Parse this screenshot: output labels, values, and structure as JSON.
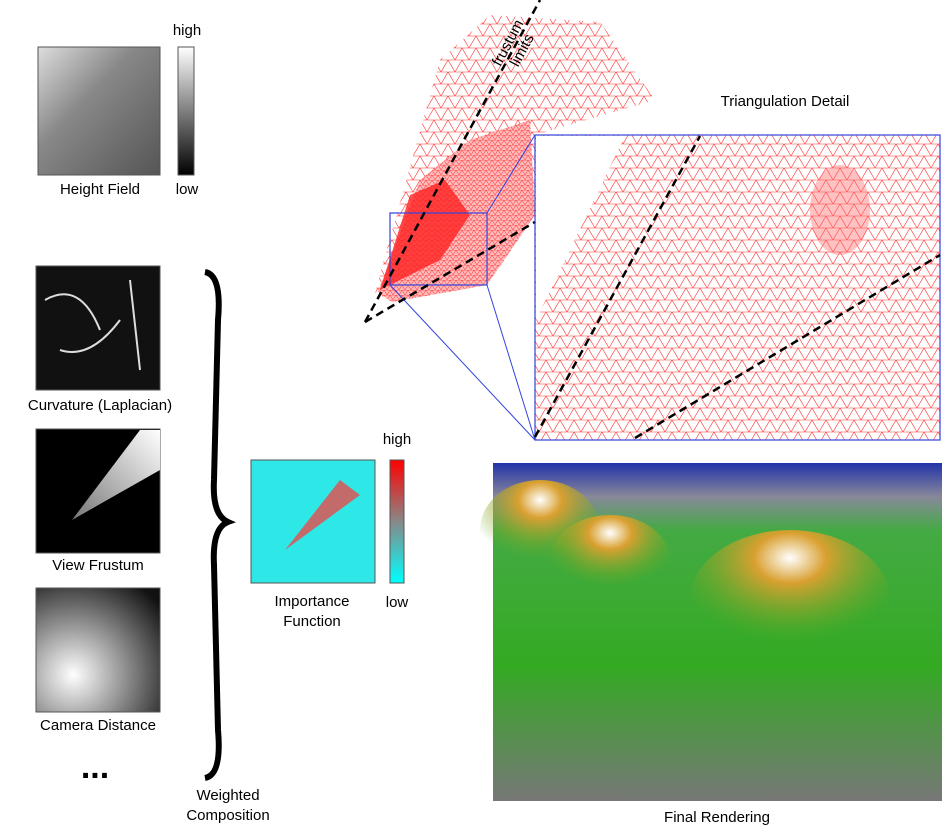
{
  "height_field": {
    "label": "Height Field",
    "scale_high": "high",
    "scale_low": "low"
  },
  "inputs": [
    {
      "label": "Curvature (Laplacian)"
    },
    {
      "label": "View Frustum"
    },
    {
      "label": "Camera Distance"
    }
  ],
  "ellipsis": "...",
  "composition_label": [
    "Weighted",
    "Composition"
  ],
  "importance": {
    "label": [
      "Importance",
      "Function"
    ],
    "scale_high": "high",
    "scale_low": "low"
  },
  "frustum_label": [
    "frustum",
    "limits"
  ],
  "triangulation_title": "Triangulation Detail",
  "rendering_title": "Final Rendering"
}
